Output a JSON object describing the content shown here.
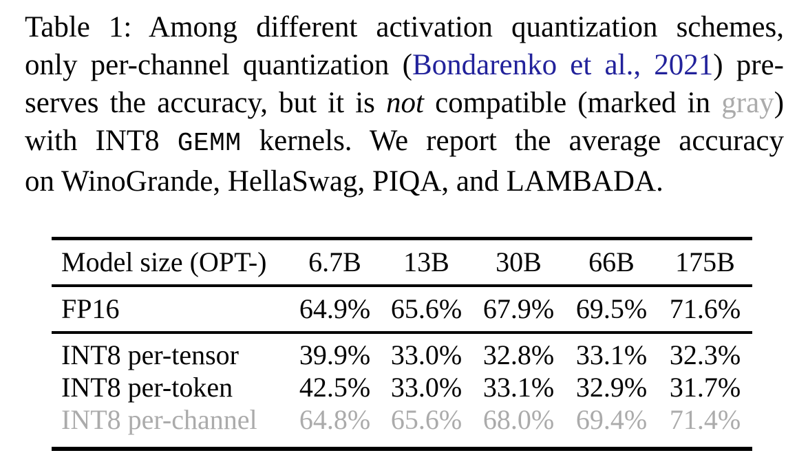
{
  "colors": {
    "citation_blue": "#22229b",
    "gray_text": "#ababab",
    "text_black": "#030303"
  },
  "caption": {
    "line1": "Table 1: Among different activation quantization schemes,",
    "line2": {
      "pre": "only per-channel quantization (",
      "citation": "Bondarenko et al., 2021",
      "post": ") pre-"
    },
    "line3": {
      "pre": "serves the accuracy, but it is ",
      "emphasis": "not",
      "mid": " compatible (marked in ",
      "gray_word": "gray",
      "post": ")"
    },
    "line4": {
      "pre": "with INT8 ",
      "code": "GEMM",
      "post": " kernels. We report the average accuracy"
    },
    "line5": "on WinoGrande, HellaSwag, PIQA, and LAMBADA."
  },
  "table": {
    "columns": [
      "Model size (OPT-)",
      "6.7B",
      "13B",
      "30B",
      "66B",
      "175B"
    ],
    "rows": [
      {
        "label": "FP16",
        "values": [
          "64.9%",
          "65.6%",
          "67.9%",
          "69.5%",
          "71.6%"
        ],
        "muted": false
      },
      {
        "label": "INT8 per-tensor",
        "values": [
          "39.9%",
          "33.0%",
          "32.8%",
          "33.1%",
          "32.3%"
        ],
        "muted": false
      },
      {
        "label": "INT8 per-token",
        "values": [
          "42.5%",
          "33.0%",
          "33.1%",
          "32.9%",
          "31.7%"
        ],
        "muted": false
      },
      {
        "label": "INT8 per-channel",
        "values": [
          "64.8%",
          "65.6%",
          "68.0%",
          "69.4%",
          "71.4%"
        ],
        "muted": true
      }
    ]
  }
}
